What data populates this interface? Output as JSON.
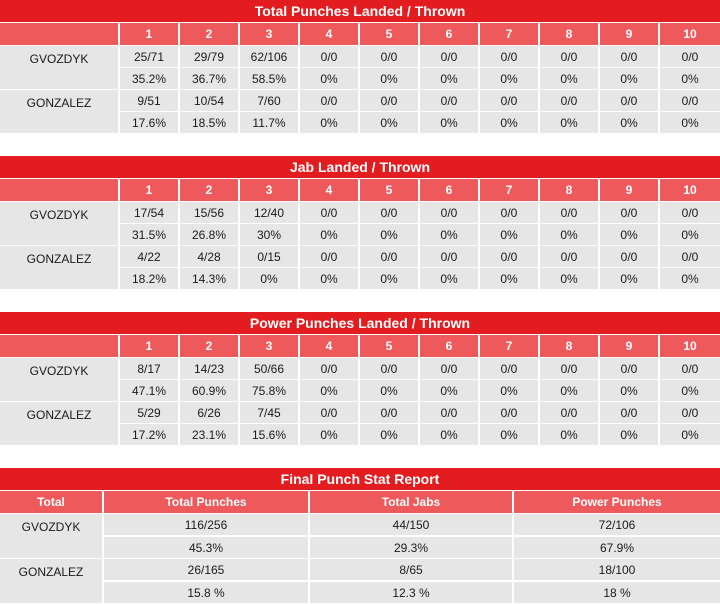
{
  "rounds": [
    "1",
    "2",
    "3",
    "4",
    "5",
    "6",
    "7",
    "8",
    "9",
    "10"
  ],
  "tables": [
    {
      "title": "Total Punches Landed / Thrown",
      "fighters": [
        {
          "name": "GVOZDYK",
          "landed": [
            "25/71",
            "29/79",
            "62/106",
            "0/0",
            "0/0",
            "0/0",
            "0/0",
            "0/0",
            "0/0",
            "0/0"
          ],
          "pct": [
            "35.2%",
            "36.7%",
            "58.5%",
            "0%",
            "0%",
            "0%",
            "0%",
            "0%",
            "0%",
            "0%"
          ]
        },
        {
          "name": "GONZALEZ",
          "landed": [
            "9/51",
            "10/54",
            "7/60",
            "0/0",
            "0/0",
            "0/0",
            "0/0",
            "0/0",
            "0/0",
            "0/0"
          ],
          "pct": [
            "17.6%",
            "18.5%",
            "11.7%",
            "0%",
            "0%",
            "0%",
            "0%",
            "0%",
            "0%",
            "0%"
          ]
        }
      ]
    },
    {
      "title": "Jab Landed / Thrown",
      "fighters": [
        {
          "name": "GVOZDYK",
          "landed": [
            "17/54",
            "15/56",
            "12/40",
            "0/0",
            "0/0",
            "0/0",
            "0/0",
            "0/0",
            "0/0",
            "0/0"
          ],
          "pct": [
            "31.5%",
            "26.8%",
            "30%",
            "0%",
            "0%",
            "0%",
            "0%",
            "0%",
            "0%",
            "0%"
          ]
        },
        {
          "name": "GONZALEZ",
          "landed": [
            "4/22",
            "4/28",
            "0/15",
            "0/0",
            "0/0",
            "0/0",
            "0/0",
            "0/0",
            "0/0",
            "0/0"
          ],
          "pct": [
            "18.2%",
            "14.3%",
            "0%",
            "0%",
            "0%",
            "0%",
            "0%",
            "0%",
            "0%",
            "0%"
          ]
        }
      ]
    },
    {
      "title": "Power Punches Landed / Thrown",
      "fighters": [
        {
          "name": "GVOZDYK",
          "landed": [
            "8/17",
            "14/23",
            "50/66",
            "0/0",
            "0/0",
            "0/0",
            "0/0",
            "0/0",
            "0/0",
            "0/0"
          ],
          "pct": [
            "47.1%",
            "60.9%",
            "75.8%",
            "0%",
            "0%",
            "0%",
            "0%",
            "0%",
            "0%",
            "0%"
          ]
        },
        {
          "name": "GONZALEZ",
          "landed": [
            "5/29",
            "6/26",
            "7/45",
            "0/0",
            "0/0",
            "0/0",
            "0/0",
            "0/0",
            "0/0",
            "0/0"
          ],
          "pct": [
            "17.2%",
            "23.1%",
            "15.6%",
            "0%",
            "0%",
            "0%",
            "0%",
            "0%",
            "0%",
            "0%"
          ]
        }
      ]
    }
  ],
  "final": {
    "title": "Final Punch Stat Report",
    "headers": [
      "Total",
      "Total Punches",
      "Total Jabs",
      "Power Punches"
    ],
    "fighters": [
      {
        "name": "GVOZDYK",
        "totals": [
          "116/256",
          "44/150",
          "72/106"
        ],
        "pct": [
          "45.3%",
          "29.3%",
          "67.9%"
        ]
      },
      {
        "name": "GONZALEZ",
        "totals": [
          "26/165",
          "8/65",
          "18/100"
        ],
        "pct": [
          "15.8 %",
          "12.3 %",
          "18 %"
        ]
      }
    ]
  },
  "colors": {
    "title_bg": "#e31d1f",
    "header_bg": "#ee5a5c",
    "cell_bg": "#e6e6e6"
  }
}
